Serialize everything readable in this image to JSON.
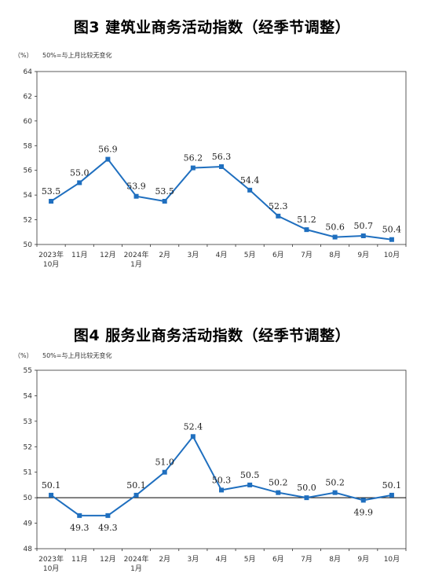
{
  "chart_data": [
    {
      "type": "line",
      "title": "图3  建筑业商务活动指数（经季节调整）",
      "unit": "（%）",
      "note": "50%=与上月比较无变化",
      "categories": [
        "2023年\n10月",
        "11月",
        "12月",
        "2024年\n1月",
        "2月",
        "3月",
        "4月",
        "5月",
        "6月",
        "7月",
        "8月",
        "9月",
        "10月"
      ],
      "series": [
        {
          "values": [
            53.5,
            55.0,
            56.9,
            53.9,
            53.5,
            56.2,
            56.3,
            54.4,
            52.3,
            51.2,
            50.6,
            50.7,
            50.4
          ]
        }
      ],
      "data_labels": [
        "53.5",
        "55.0",
        "56.9",
        "53.9",
        "53.5",
        "56.2",
        "56.3",
        "54.4",
        "52.3",
        "51.2",
        "50.6",
        "50.7",
        "50.4"
      ],
      "ylim": [
        50,
        64
      ],
      "yticks": [
        "50",
        "52",
        "54",
        "56",
        "58",
        "60",
        "62",
        "64"
      ],
      "reference_line": null,
      "color": "#1F6FBF"
    },
    {
      "type": "line",
      "title": "图4  服务业商务活动指数（经季节调整）",
      "unit": "（%）",
      "note": "50%=与上月比较无变化",
      "categories": [
        "2023年\n10月",
        "11月",
        "12月",
        "2024年\n1月",
        "2月",
        "3月",
        "4月",
        "5月",
        "6月",
        "7月",
        "8月",
        "9月",
        "10月"
      ],
      "series": [
        {
          "values": [
            50.1,
            49.3,
            49.3,
            50.1,
            51.0,
            52.4,
            50.3,
            50.5,
            50.2,
            50.0,
            50.2,
            49.9,
            50.1
          ]
        }
      ],
      "data_labels": [
        "50.1",
        "49.3",
        "49.3",
        "50.1",
        "51.0",
        "52.4",
        "50.3",
        "50.5",
        "50.2",
        "50.0",
        "50.2",
        "49.9",
        "50.1"
      ],
      "ylim": [
        48,
        55
      ],
      "yticks": [
        "48",
        "49",
        "50",
        "51",
        "52",
        "53",
        "54",
        "55"
      ],
      "reference_line": 50,
      "color": "#1F6FBF"
    }
  ]
}
